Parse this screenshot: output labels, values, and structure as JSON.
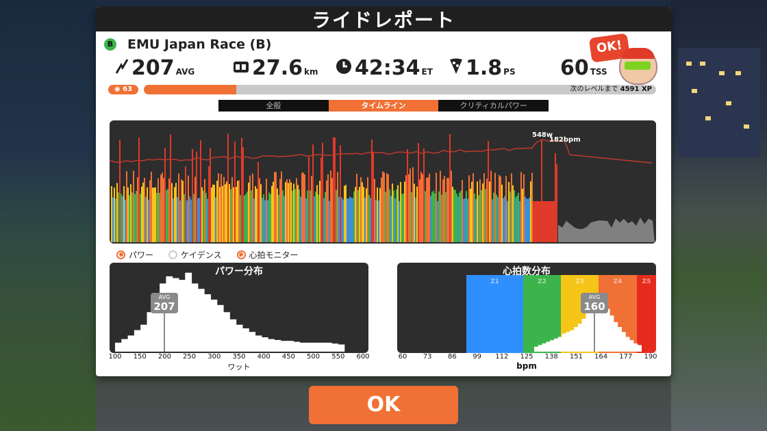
{
  "title": "ライドレポート",
  "event": {
    "category": "B",
    "name": "EMU Japan Race (B)"
  },
  "stats": {
    "power": {
      "icon": "power-bolt-icon",
      "value": "207",
      "unit": "AVG"
    },
    "distance": {
      "icon": "distance-icon",
      "value": "27.6",
      "unit": "km"
    },
    "time": {
      "icon": "clock-icon",
      "value": "42:34",
      "unit": "ET"
    },
    "speed_drops": {
      "icon": "pizza-icon",
      "value": "1.8",
      "unit": "PS"
    },
    "tss": {
      "value": "60",
      "unit": "TSS"
    }
  },
  "avatar": {
    "bubble": "OK!"
  },
  "xp": {
    "level": "63",
    "progress": 0.18,
    "label": "次のレベルまで",
    "remaining": "4591 XP"
  },
  "tabs": [
    {
      "label": "全般",
      "active": false
    },
    {
      "label": "タイムライン",
      "active": true
    },
    {
      "label": "クリティカルパワー",
      "active": false
    }
  ],
  "timeline": {
    "peak_power": "548w",
    "peak_hr": "182bpm"
  },
  "legend": [
    {
      "label": "パワー",
      "on": true
    },
    {
      "label": "ケイデンス",
      "on": false
    },
    {
      "label": "心拍モニター",
      "on": true
    }
  ],
  "power_hist": {
    "title": "パワー分布",
    "avg_label": "AVG",
    "avg": "207",
    "xlabel": "ワット",
    "ticks": [
      "100",
      "150",
      "200",
      "250",
      "300",
      "350",
      "400",
      "450",
      "500",
      "550",
      "600"
    ]
  },
  "hr_hist": {
    "title": "心拍数分布",
    "avg_label": "AVG",
    "avg": "160",
    "xlabel": "bpm",
    "ticks": [
      "60",
      "73",
      "86",
      "99",
      "112",
      "125",
      "138",
      "151",
      "164",
      "177",
      "190"
    ],
    "zones": [
      {
        "label": "Z1",
        "color": "#2f8fff"
      },
      {
        "label": "Z2",
        "color": "#3cb44b"
      },
      {
        "label": "Z3",
        "color": "#f5c518"
      },
      {
        "label": "Z4",
        "color": "#f07035"
      },
      {
        "label": "Z5",
        "color": "#e62b1e"
      }
    ]
  },
  "ok_button": "OK",
  "colors": {
    "accent": "#f07035",
    "panel_dark": "#2d2d2d"
  }
}
